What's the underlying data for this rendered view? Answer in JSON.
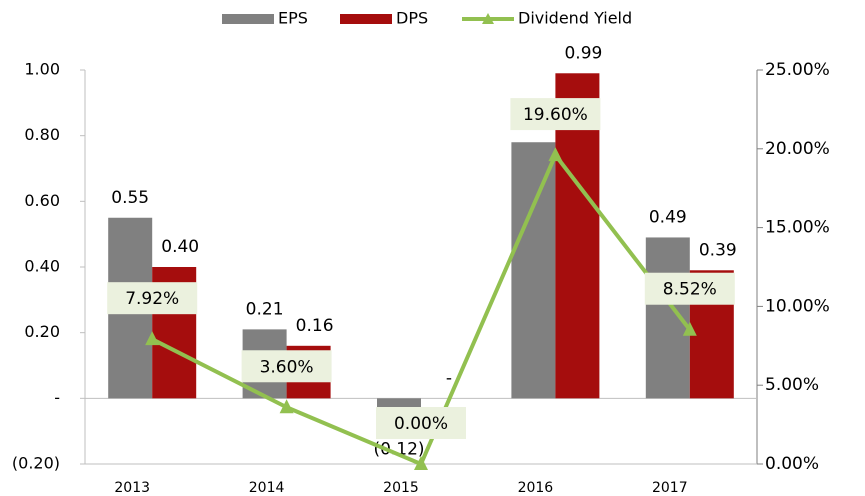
{
  "chart_data": {
    "type": "bar-line",
    "categories": [
      "2013",
      "2014",
      "2015",
      "2016",
      "2017"
    ],
    "series": [
      {
        "name": "EPS",
        "color": "#808080",
        "values": [
          0.55,
          0.21,
          -0.12,
          0.78,
          0.49
        ],
        "value_labels": [
          "0.55",
          "0.21",
          "(0.12)",
          "0.78",
          "0.49"
        ]
      },
      {
        "name": "DPS",
        "color": "#a50d0d",
        "values": [
          0.4,
          0.16,
          0,
          0.99,
          0.39
        ],
        "value_labels": [
          "0.40",
          "0.16",
          "-",
          "0.99",
          "0.39"
        ]
      },
      {
        "name": "Dividend Yield",
        "color": "#92c050",
        "axis": "y2",
        "values": [
          7.92,
          3.6,
          0,
          19.6,
          8.52
        ],
        "value_labels": [
          "7.92%",
          "3.60%",
          "0.00%",
          "19.60%",
          "8.52%"
        ]
      }
    ],
    "ylim": [
      -0.2,
      1.0
    ],
    "yticks": [
      {
        "value": -0.2,
        "label": "(0.20)"
      },
      {
        "value": 0,
        "label": "-"
      },
      {
        "value": 0.2,
        "label": "0.20"
      },
      {
        "value": 0.4,
        "label": "0.40"
      },
      {
        "value": 0.6,
        "label": "0.60"
      },
      {
        "value": 0.8,
        "label": "0.80"
      },
      {
        "value": 1.0,
        "label": "1.00"
      }
    ],
    "y2lim": [
      0,
      25
    ],
    "y2ticks": [
      {
        "value": 0,
        "label": "0.00%"
      },
      {
        "value": 5,
        "label": "5.00%"
      },
      {
        "value": 10,
        "label": "10.00%"
      },
      {
        "value": 15,
        "label": "15.00%"
      },
      {
        "value": 20,
        "label": "20.00%"
      },
      {
        "value": 25,
        "label": "25.00%"
      }
    ],
    "legend": "top"
  }
}
